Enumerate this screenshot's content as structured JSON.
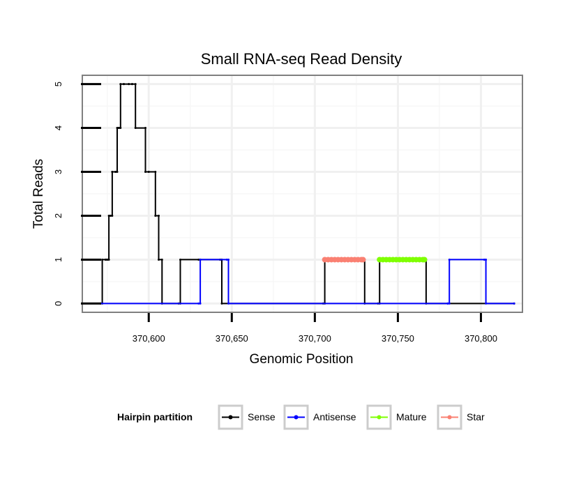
{
  "chart_data": {
    "type": "line",
    "title": "Small RNA-seq Read Density",
    "xlabel": "Genomic Position",
    "ylabel": "Total Reads",
    "xlim": [
      370560,
      370825
    ],
    "ylim": [
      -0.2,
      5.2
    ],
    "x_ticks": [
      370600,
      370650,
      370700,
      370750,
      370800
    ],
    "x_tick_labels": [
      "370,600",
      "370,650",
      "370,700",
      "370,750",
      "370,800"
    ],
    "y_ticks": [
      0,
      1,
      2,
      3,
      4,
      5
    ],
    "y_tick_labels": [
      "0",
      "1",
      "2",
      "3",
      "4",
      "5"
    ],
    "grid": true,
    "legend": {
      "title": "Hairpin partition",
      "position": "bottom",
      "entries": [
        "Sense",
        "Antisense",
        "Mature",
        "Star"
      ]
    },
    "series": [
      {
        "name": "Sense",
        "color": "#000000",
        "points": true,
        "x": [
          370571,
          370572,
          370572,
          370574,
          370574,
          370575,
          370575,
          370576,
          370576,
          370577,
          370577,
          370578,
          370578,
          370580,
          370580,
          370581,
          370581,
          370582,
          370582,
          370583,
          370583,
          370585,
          370585,
          370588,
          370588,
          370590,
          370590,
          370592,
          370592,
          370598,
          370598,
          370600,
          370600,
          370604,
          370604,
          370606,
          370606,
          370608,
          370608,
          370618,
          370619,
          370619,
          370630,
          370631,
          370631,
          370643,
          370644,
          370644,
          370705,
          370706,
          370706,
          370729,
          370730,
          370730,
          370738,
          370739,
          370739,
          370766,
          370767,
          370767,
          370820
        ],
        "y": [
          0,
          0,
          1,
          1,
          1,
          1,
          1,
          1,
          2,
          2,
          2,
          2,
          3,
          3,
          3,
          3,
          4,
          4,
          4,
          4,
          5,
          5,
          5,
          5,
          5,
          5,
          5,
          5,
          4,
          4,
          3,
          3,
          3,
          3,
          2,
          2,
          1,
          1,
          0,
          0,
          0,
          1,
          1,
          1,
          1,
          1,
          1,
          0,
          0,
          0,
          1,
          1,
          1,
          0,
          0,
          0,
          1,
          1,
          1,
          0,
          0
        ]
      },
      {
        "name": "Antisense",
        "color": "#0000ff",
        "points": true,
        "x": [
          370571,
          370630,
          370631,
          370631,
          370647,
          370648,
          370648,
          370780,
          370780,
          370781,
          370781,
          370802,
          370803,
          370803,
          370820
        ],
        "y": [
          0,
          0,
          0,
          1,
          1,
          1,
          0,
          0,
          0,
          0,
          1,
          1,
          1,
          0,
          0
        ]
      },
      {
        "name": "Mature",
        "color": "#7fff00",
        "points": true,
        "x": [
          370739,
          370741,
          370743,
          370745,
          370747,
          370749,
          370751,
          370753,
          370755,
          370757,
          370759,
          370761,
          370763,
          370765,
          370766
        ],
        "y": [
          1,
          1,
          1,
          1,
          1,
          1,
          1,
          1,
          1,
          1,
          1,
          1,
          1,
          1,
          1
        ]
      },
      {
        "name": "Star",
        "color": "#fa8072",
        "points": true,
        "x": [
          370706,
          370708,
          370710,
          370712,
          370714,
          370716,
          370718,
          370720,
          370722,
          370724,
          370726,
          370728,
          370729
        ],
        "y": [
          1,
          1,
          1,
          1,
          1,
          1,
          1,
          1,
          1,
          1,
          1,
          1,
          1
        ]
      }
    ]
  },
  "colors": {
    "panel_border": "#7f7f7f",
    "grid_major": "#f0f0f0",
    "grid_minor": "#f7f7f7",
    "legend_key_border": "#cccccc"
  }
}
